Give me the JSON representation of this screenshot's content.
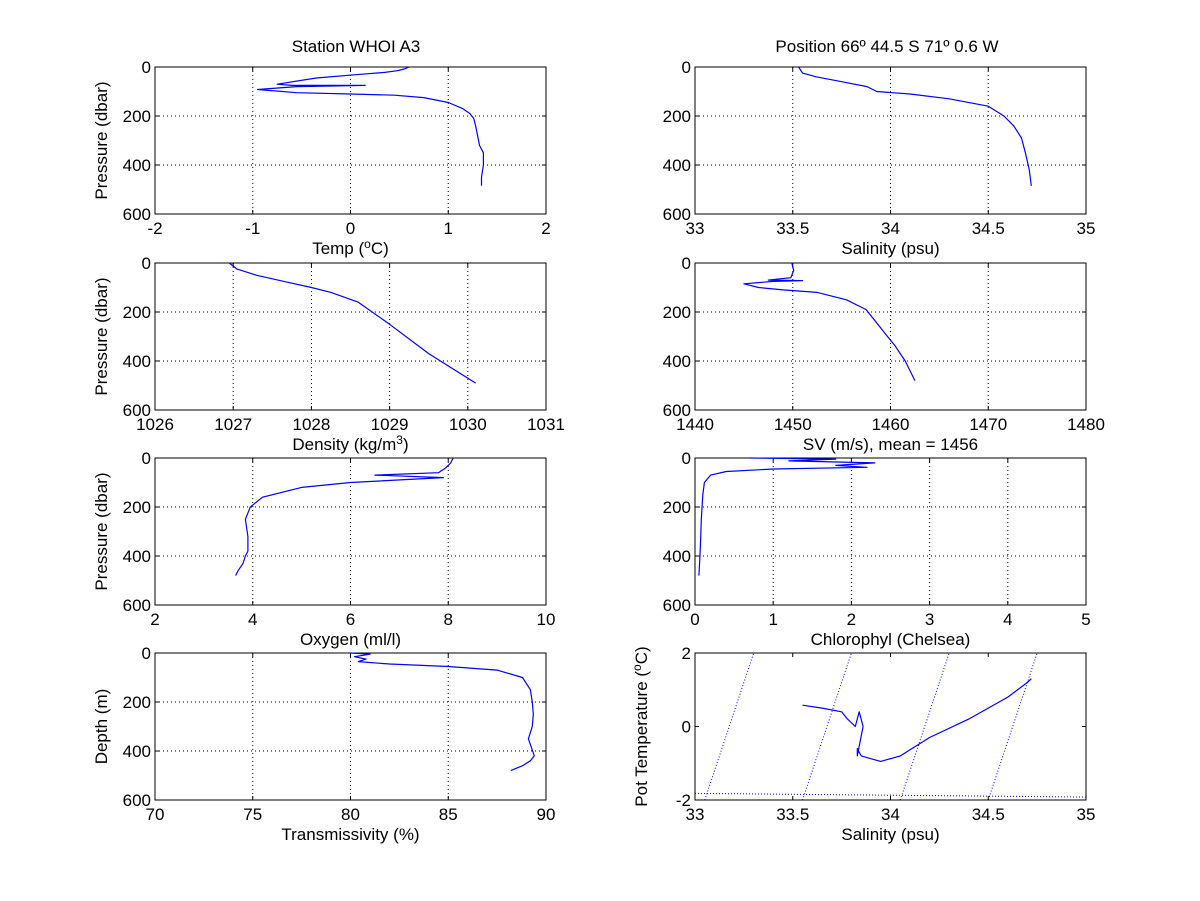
{
  "figure": {
    "title_left": "Station  WHOI A3",
    "title_right": "Position 66º 44.5 S 71º  0.6 W"
  },
  "colors": {
    "line": "#0000ff",
    "axis": "#000000",
    "grid": "#000000",
    "background": "#ffffff"
  },
  "chart_data": [
    {
      "id": "temp",
      "type": "line",
      "title": "",
      "xlabel": "Temp (ºC)",
      "ylabel": "Pressure (dbar)",
      "xlim": [
        -2,
        2
      ],
      "ylim": [
        0,
        600
      ],
      "y_reversed": true,
      "grid": true,
      "xticks": [
        "-2",
        "-1",
        "0",
        "1",
        "2"
      ],
      "yticks": [
        "0",
        "200",
        "400",
        "600"
      ],
      "x": [
        0.6,
        0.55,
        0.48,
        0.35,
        0.1,
        -0.35,
        -0.75,
        -0.6,
        -0.2,
        0.15,
        -0.55,
        -0.95,
        -0.55,
        0.0,
        0.45,
        0.75,
        1.0,
        1.15,
        1.22,
        1.26,
        1.28,
        1.3,
        1.32,
        1.36,
        1.36,
        1.34,
        1.34
      ],
      "y": [
        0,
        8,
        15,
        22,
        30,
        45,
        70,
        75,
        75,
        75,
        80,
        92,
        105,
        110,
        115,
        125,
        145,
        170,
        190,
        210,
        240,
        280,
        320,
        350,
        400,
        450,
        485
      ]
    },
    {
      "id": "salinity",
      "type": "line",
      "title": "",
      "xlabel": "Salinity (psu)",
      "ylabel": "",
      "xlim": [
        33,
        35
      ],
      "ylim": [
        0,
        600
      ],
      "y_reversed": true,
      "grid": true,
      "xticks": [
        "33",
        "33.5",
        "34",
        "34.5",
        "35"
      ],
      "yticks": [
        "0",
        "200",
        "400",
        "600"
      ],
      "x": [
        33.53,
        33.55,
        33.62,
        33.75,
        33.88,
        33.93,
        34.1,
        34.3,
        34.5,
        34.58,
        34.63,
        34.67,
        34.69,
        34.71,
        34.72
      ],
      "y": [
        0,
        25,
        40,
        60,
        80,
        100,
        110,
        130,
        160,
        200,
        240,
        290,
        350,
        420,
        485
      ]
    },
    {
      "id": "density",
      "type": "line",
      "title": "",
      "xlabel": "Density (kg/m³)",
      "ylabel": "Pressure (dbar)",
      "xlim": [
        1026,
        1031
      ],
      "ylim": [
        0,
        600
      ],
      "y_reversed": true,
      "grid": true,
      "xticks": [
        "1026",
        "1027",
        "1028",
        "1029",
        "1030",
        "1031"
      ],
      "yticks": [
        "0",
        "200",
        "400",
        "600"
      ],
      "x": [
        1026.95,
        1027.05,
        1027.3,
        1027.65,
        1028.0,
        1028.25,
        1028.6,
        1029.0,
        1029.5,
        1030.1
      ],
      "y": [
        0,
        25,
        50,
        75,
        100,
        120,
        160,
        250,
        370,
        490
      ]
    },
    {
      "id": "sv",
      "type": "line",
      "title": "",
      "xlabel": "SV (m/s), mean = 1456",
      "ylabel": "",
      "xlim": [
        1440,
        1480
      ],
      "ylim": [
        0,
        600
      ],
      "y_reversed": true,
      "grid": true,
      "xticks": [
        "1440",
        "1450",
        "1460",
        "1470",
        "1480"
      ],
      "yticks": [
        "0",
        "200",
        "400",
        "600"
      ],
      "x": [
        1449.9,
        1450.1,
        1449.8,
        1447.5,
        1451.0,
        1448.0,
        1445.0,
        1446.5,
        1449.0,
        1452.5,
        1455.5,
        1457.5,
        1458.5,
        1459.5,
        1460.5,
        1461.5,
        1462.5
      ],
      "y": [
        0,
        30,
        60,
        70,
        72,
        75,
        85,
        100,
        110,
        120,
        150,
        190,
        240,
        290,
        340,
        400,
        480
      ]
    },
    {
      "id": "oxygen",
      "type": "line",
      "title": "",
      "xlabel": "Oxygen (ml/l)",
      "ylabel": "Pressure (dbar)",
      "xlim": [
        2,
        10
      ],
      "ylim": [
        0,
        600
      ],
      "y_reversed": true,
      "grid": true,
      "xticks": [
        "2",
        "4",
        "6",
        "8",
        "10"
      ],
      "yticks": [
        "0",
        "200",
        "400",
        "600"
      ],
      "x": [
        8.1,
        8.05,
        7.95,
        7.8,
        6.5,
        7.9,
        6.0,
        5.0,
        4.2,
        3.95,
        3.85,
        3.9,
        3.9,
        3.85,
        3.8,
        3.7,
        3.65
      ],
      "y": [
        0,
        20,
        40,
        60,
        70,
        80,
        100,
        120,
        160,
        200,
        250,
        320,
        380,
        400,
        430,
        460,
        480
      ]
    },
    {
      "id": "chlorophyll",
      "type": "line",
      "title": "",
      "xlabel": "Chlorophyl (Chelsea)",
      "ylabel": "",
      "xlim": [
        0,
        5
      ],
      "ylim": [
        0,
        600
      ],
      "y_reversed": true,
      "grid": true,
      "xticks": [
        "0",
        "1",
        "2",
        "3",
        "4",
        "5"
      ],
      "yticks": [
        "0",
        "200",
        "400",
        "600"
      ],
      "x": [
        0.7,
        1.8,
        1.2,
        2.3,
        1.8,
        2.2,
        1.0,
        0.4,
        0.2,
        0.12,
        0.1,
        0.08,
        0.07,
        0.06,
        0.05
      ],
      "y": [
        0,
        5,
        12,
        20,
        30,
        38,
        45,
        55,
        70,
        100,
        150,
        250,
        350,
        420,
        480
      ]
    },
    {
      "id": "transmissivity",
      "type": "line",
      "title": "",
      "xlabel": "Transmissivity (%)",
      "ylabel": "Depth (m)",
      "xlim": [
        70,
        90
      ],
      "ylim": [
        0,
        600
      ],
      "y_reversed": true,
      "grid": true,
      "xticks": [
        "70",
        "75",
        "80",
        "85",
        "90"
      ],
      "yticks": [
        "0",
        "200",
        "400",
        "600"
      ],
      "x": [
        80.0,
        81.0,
        80.2,
        80.8,
        80.4,
        82.0,
        85.0,
        87.5,
        88.8,
        89.2,
        89.3,
        89.35,
        89.3,
        89.1,
        89.4,
        89.2,
        88.8,
        88.2
      ],
      "y": [
        0,
        5,
        15,
        25,
        35,
        45,
        55,
        70,
        100,
        150,
        200,
        250,
        300,
        350,
        420,
        440,
        460,
        480
      ]
    },
    {
      "id": "ts",
      "type": "line",
      "title": "",
      "xlabel": "Salinity (psu)",
      "ylabel": "Pot Temperature (ºC)",
      "xlim": [
        33,
        35
      ],
      "ylim": [
        -2,
        2
      ],
      "y_reversed": false,
      "grid": false,
      "xticks": [
        "33",
        "33.5",
        "34",
        "34.5",
        "35"
      ],
      "yticks": [
        "-2",
        "0",
        "2"
      ],
      "x": [
        33.55,
        33.65,
        33.75,
        33.78,
        33.82,
        33.84,
        33.86,
        33.83,
        33.83,
        33.85,
        33.95,
        34.05,
        34.2,
        34.4,
        34.6,
        34.7,
        34.72
      ],
      "y": [
        0.58,
        0.5,
        0.4,
        0.2,
        0.0,
        0.4,
        0.0,
        -0.8,
        -0.6,
        -0.8,
        -0.95,
        -0.8,
        -0.3,
        0.2,
        0.8,
        1.2,
        1.3
      ],
      "isopycnals": [
        {
          "x": [
            33.05,
            33.3
          ],
          "y": [
            -2,
            2
          ]
        },
        {
          "x": [
            33.55,
            33.8
          ],
          "y": [
            -2,
            2
          ]
        },
        {
          "x": [
            34.05,
            34.3
          ],
          "y": [
            -2,
            2
          ]
        },
        {
          "x": [
            34.5,
            34.75
          ],
          "y": [
            -2,
            2
          ]
        }
      ],
      "freezing_line": {
        "x": [
          33,
          35
        ],
        "y": [
          -1.82,
          -1.92
        ]
      }
    }
  ]
}
